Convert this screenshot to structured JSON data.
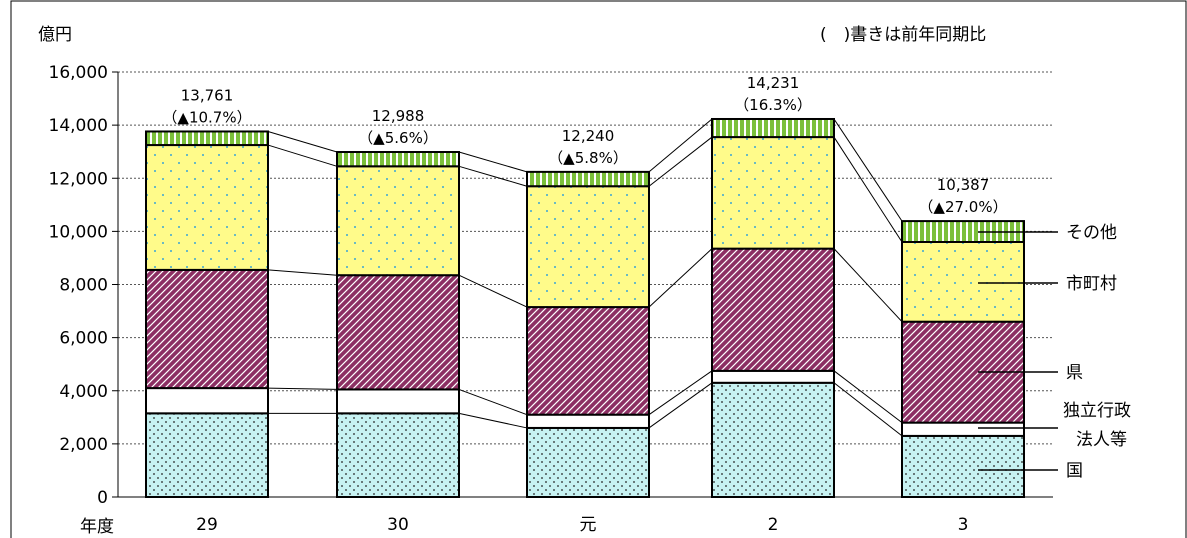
{
  "chart_data": {
    "type": "bar",
    "stacked": true,
    "title": "",
    "note": "(　)書きは前年同期比",
    "ylabel": "億円",
    "xlabel": "年度",
    "ylim": [
      0,
      16000
    ],
    "yticks": [
      "0",
      "2,000",
      "4,000",
      "6,000",
      "8,000",
      "10,000",
      "12,000",
      "14,000",
      "16,000"
    ],
    "categories": [
      "29",
      "30",
      "元",
      "2",
      "3"
    ],
    "series": [
      {
        "name": "国",
        "values": [
          3150,
          3150,
          2600,
          4300,
          2300
        ],
        "color": "#c7f2f2"
      },
      {
        "name": "独立行政法人等",
        "values": [
          950,
          900,
          500,
          450,
          500
        ],
        "color": "#ffffff"
      },
      {
        "name": "県",
        "values": [
          4450,
          4300,
          4050,
          4600,
          3800
        ],
        "color": "#8c2f63"
      },
      {
        "name": "市町村",
        "values": [
          4700,
          4100,
          4550,
          4200,
          3000
        ],
        "color": "#fffb8a"
      },
      {
        "name": "その他",
        "values": [
          511,
          538,
          540,
          681,
          787
        ],
        "color": "#7bbf3a"
      }
    ],
    "totals": [
      "13,761",
      "12,988",
      "12,240",
      "14,231",
      "10,387"
    ],
    "yoy": [
      "（▲10.7%）",
      "（▲5.6%）",
      "（▲5.8%）",
      "（16.3%）",
      "（▲27.0%）"
    ],
    "legend_labels": [
      "その他",
      "市町村",
      "県",
      "独立行政",
      "法人等",
      "国"
    ],
    "grid": true
  }
}
